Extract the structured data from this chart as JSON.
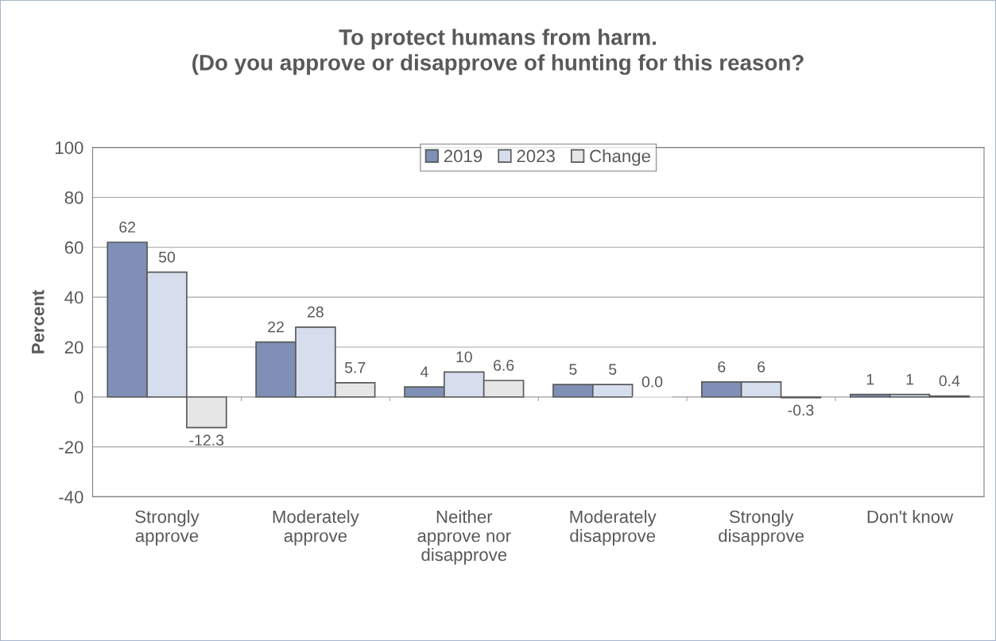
{
  "chart_data": {
    "type": "bar",
    "title": "To protect humans from harm.\n(Do you approve or disapprove of hunting for this reason?",
    "ylabel": "Percent",
    "categories": [
      "Strongly\napprove",
      "Moderately\napprove",
      "Neither\napprove nor\ndisapprove",
      "Moderately\ndisapprove",
      "Strongly\ndisapprove",
      "Don't know"
    ],
    "series": [
      {
        "name": "2019",
        "color": "#7f8fb5",
        "values": [
          62,
          22,
          4,
          5,
          6,
          1
        ],
        "value_labels": [
          "62",
          "22",
          "4",
          "5",
          "6",
          "1"
        ]
      },
      {
        "name": "2023",
        "color": "#d6deee",
        "values": [
          50,
          28,
          10,
          5,
          6,
          1
        ],
        "value_labels": [
          "50",
          "28",
          "10",
          "5",
          "6",
          "1"
        ]
      },
      {
        "name": "Change",
        "color": "#e6e6e6",
        "values": [
          -12.3,
          5.7,
          6.6,
          0.0,
          -0.3,
          0.4
        ],
        "value_labels": [
          "-12.3",
          "5.7",
          "6.6",
          "0.0",
          "-0.3",
          "0.4"
        ]
      }
    ],
    "ylim": [
      -40,
      100
    ],
    "yticks": [
      -40,
      -20,
      0,
      20,
      40,
      60,
      80,
      100
    ],
    "grid": "y",
    "legend": "top"
  }
}
